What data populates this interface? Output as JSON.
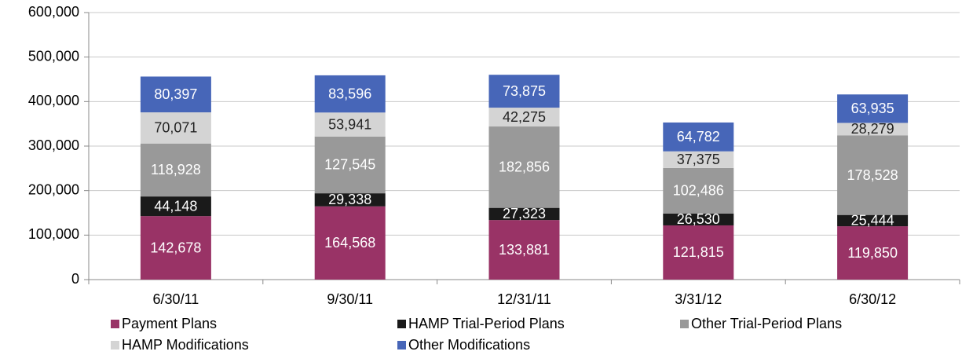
{
  "chart_data": {
    "type": "stacked_bar",
    "categories": [
      "6/30/11",
      "9/30/11",
      "12/31/11",
      "3/31/12",
      "6/30/12"
    ],
    "series": [
      {
        "name": "Payment Plans",
        "color": "#993366",
        "values": [
          142678,
          164568,
          133881,
          121815,
          119850
        ],
        "value_labels": [
          "142,678",
          "164,568",
          "133,881",
          "121,815",
          "119,850"
        ]
      },
      {
        "name": "HAMP Trial-Period Plans",
        "color": "#1a1a1a",
        "values": [
          44148,
          29338,
          27323,
          26530,
          25444
        ],
        "value_labels": [
          "44,148",
          "29,338",
          "27,323",
          "26,530",
          "25,444"
        ]
      },
      {
        "name": "Other Trial-Period Plans",
        "color": "#999999",
        "values": [
          118928,
          127545,
          182856,
          102486,
          178528
        ],
        "value_labels": [
          "118,928",
          "127,545",
          "182,856",
          "102,486",
          "178,528"
        ]
      },
      {
        "name": "HAMP Modifications",
        "color": "#d4d4d4",
        "values": [
          70071,
          53941,
          42275,
          37375,
          28279
        ],
        "value_labels": [
          "70,071",
          "53,941",
          "42,275",
          "37,375",
          "28,279"
        ]
      },
      {
        "name": "Other Modifications",
        "color": "#4766b8",
        "values": [
          80397,
          83596,
          73875,
          64782,
          63935
        ],
        "value_labels": [
          "80,397",
          "83,596",
          "73,875",
          "64,782",
          "63,935"
        ]
      }
    ],
    "ylim": [
      0,
      600000
    ],
    "yticks": [
      0,
      {
        "value": 100000,
        "label": "100,000"
      },
      {
        "value": 200000,
        "label": "200,000"
      },
      {
        "value": 300000,
        "label": "300,000"
      },
      {
        "value": 400000,
        "label": "400,000"
      },
      {
        "value": 500000,
        "label": "500,000"
      },
      {
        "value": 600000,
        "label": "600,000"
      }
    ],
    "grid": true
  }
}
